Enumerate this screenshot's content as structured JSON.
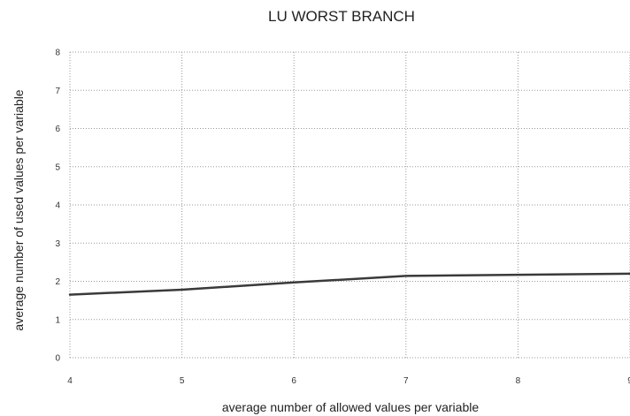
{
  "chart_data": {
    "type": "line",
    "title": "LU WORST BRANCH",
    "xlabel": "average number of allowed values per variable",
    "ylabel": "average number of used values per variable",
    "xlim": [
      4,
      9
    ],
    "ylim": [
      0,
      8
    ],
    "x_ticks": [
      "4",
      "5",
      "6",
      "7",
      "8",
      "9"
    ],
    "y_ticks": [
      "0",
      "1",
      "2",
      "3",
      "4",
      "5",
      "6",
      "7",
      "8"
    ],
    "grid": true,
    "legend": "none",
    "series": [
      {
        "x": [
          4,
          5,
          6,
          7,
          8,
          9
        ],
        "values": [
          1.65,
          1.78,
          1.97,
          2.14,
          2.17,
          2.2
        ]
      }
    ]
  },
  "colors": {
    "line": "#3a3a3a",
    "grid": "#9a9a9a",
    "text": "#222222"
  }
}
